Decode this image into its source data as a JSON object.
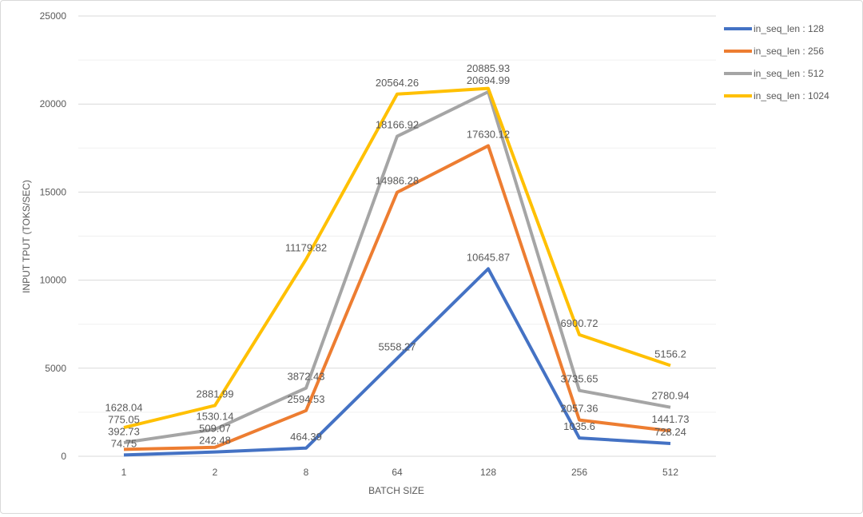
{
  "chart_data": {
    "type": "line",
    "title": "",
    "xlabel": "BATCH SIZE",
    "ylabel": "INPUT TPUT (TOKS/SEC)",
    "categories": [
      "1",
      "2",
      "8",
      "64",
      "128",
      "256",
      "512"
    ],
    "ylim": [
      0,
      25000
    ],
    "yticks": [
      0,
      5000,
      10000,
      15000,
      20000,
      25000
    ],
    "grid": true,
    "legend": "right",
    "series": [
      {
        "name": "in_seq_len : 128",
        "color": "#4472c4",
        "values": [
          74.75,
          242.48,
          464.39,
          5558.27,
          10645.87,
          1035.6,
          728.24
        ]
      },
      {
        "name": "in_seq_len : 256",
        "color": "#ed7d31",
        "values": [
          392.73,
          509.07,
          2594.53,
          14986.28,
          17630.12,
          2057.36,
          1441.73
        ]
      },
      {
        "name": "in_seq_len : 512",
        "color": "#a5a5a5",
        "values": [
          775.05,
          1530.14,
          3872.43,
          18166.92,
          20694.99,
          3735.65,
          2780.94
        ]
      },
      {
        "name": "in_seq_len : 1024",
        "color": "#ffc000",
        "values": [
          1628.04,
          2881.99,
          11179.82,
          20564.26,
          20885.93,
          6900.72,
          5156.2
        ]
      }
    ]
  }
}
